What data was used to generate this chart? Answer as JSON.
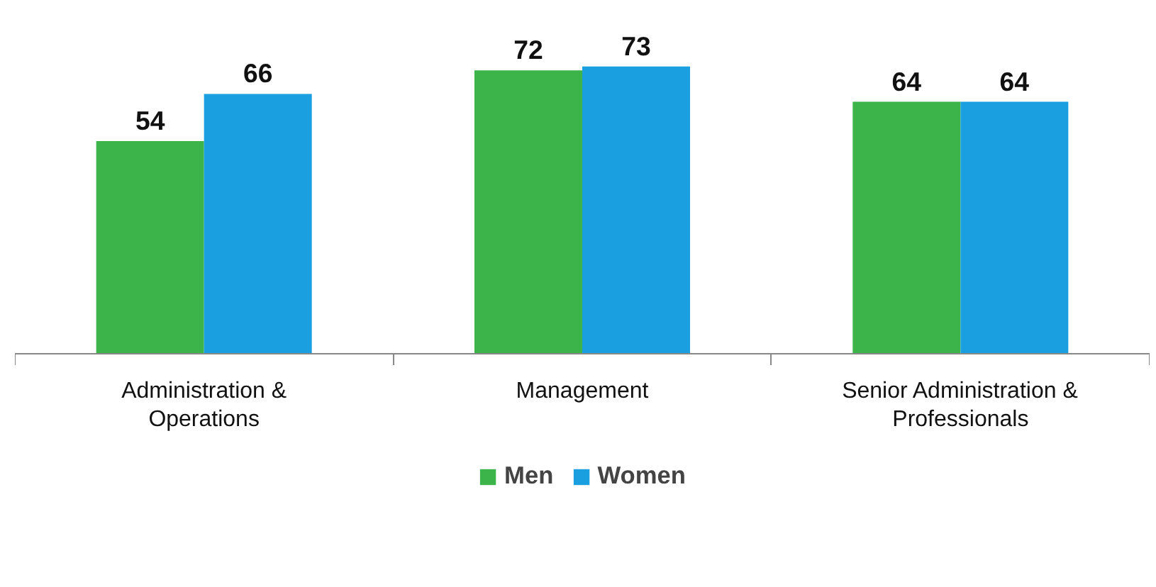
{
  "chart_data": {
    "type": "bar",
    "categories": [
      "Administration & Operations",
      "Management",
      "Senior Administration & Professionals"
    ],
    "series": [
      {
        "name": "Men",
        "color": "#3cb44a",
        "values": [
          54,
          72,
          64
        ]
      },
      {
        "name": "Women",
        "color": "#1a9fe0",
        "values": [
          66,
          73,
          64
        ]
      }
    ],
    "data_labels": true,
    "legend": "bottom",
    "grid": false
  }
}
